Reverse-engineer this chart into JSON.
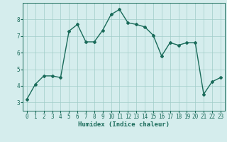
{
  "x": [
    0,
    1,
    2,
    3,
    4,
    5,
    6,
    7,
    8,
    9,
    10,
    11,
    12,
    13,
    14,
    15,
    16,
    17,
    18,
    19,
    20,
    21,
    22,
    23
  ],
  "y": [
    3.2,
    4.1,
    4.6,
    4.6,
    4.5,
    7.3,
    7.7,
    6.65,
    6.65,
    7.35,
    8.3,
    8.6,
    7.8,
    7.7,
    7.55,
    7.05,
    5.8,
    6.6,
    6.45,
    6.6,
    6.6,
    3.5,
    4.25,
    4.5
  ],
  "line_color": "#1a6b5a",
  "marker": "D",
  "marker_size": 2.0,
  "bg_color": "#d5eded",
  "grid_color": "#a0ccc8",
  "xlabel": "Humidex (Indice chaleur)",
  "xlim": [
    -0.5,
    23.5
  ],
  "ylim": [
    2.5,
    9.0
  ],
  "yticks": [
    3,
    4,
    5,
    6,
    7,
    8
  ],
  "xticks": [
    0,
    1,
    2,
    3,
    4,
    5,
    6,
    7,
    8,
    9,
    10,
    11,
    12,
    13,
    14,
    15,
    16,
    17,
    18,
    19,
    20,
    21,
    22,
    23
  ],
  "xlabel_fontsize": 6.5,
  "tick_fontsize": 5.5,
  "line_width": 1.0
}
